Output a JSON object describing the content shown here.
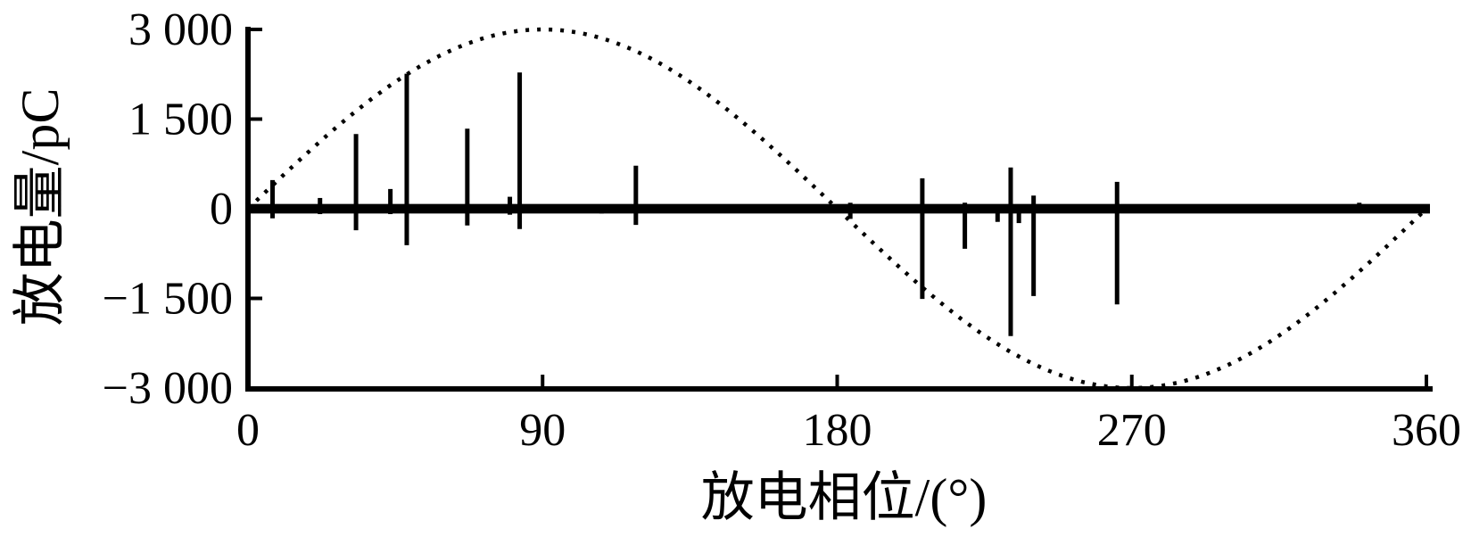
{
  "figure": {
    "background": "#ffffff",
    "ink_color": "#000000"
  },
  "chart_data": {
    "type": "scatter",
    "subtype": "prpd-stem-plot",
    "title": "",
    "xlabel": "放电相位/(°)",
    "ylabel": "放电量/pC",
    "xlim": [
      0,
      360
    ],
    "ylim": [
      -3000,
      3000
    ],
    "grid": false,
    "legend": null,
    "x_ticks": [
      0,
      90,
      180,
      270,
      360
    ],
    "x_tick_labels": [
      "0",
      "90",
      "180",
      "270",
      "360"
    ],
    "y_ticks": [
      3000,
      1500,
      0,
      -1500,
      -3000
    ],
    "y_tick_labels": [
      "3 000",
      "1 500",
      "0",
      "−1 500",
      "−3 000"
    ],
    "reference_sine": {
      "name": "applied-voltage-reference",
      "style": "dotted",
      "amplitude": 3000,
      "cycles": 1,
      "zero_crossings_deg": [
        0,
        180,
        360
      ],
      "peak_deg": 90,
      "trough_deg": 270
    },
    "zero_band": {
      "value": 0,
      "thickness_pC": 160,
      "note": "dense band of small discharges along 0 pC across full phase range"
    },
    "discharges": [
      {
        "phase_deg": 7.5,
        "pos_pC": 480,
        "neg_pC": -160
      },
      {
        "phase_deg": 22,
        "pos_pC": 180,
        "neg_pC": -90
      },
      {
        "phase_deg": 33,
        "pos_pC": 1250,
        "neg_pC": -360
      },
      {
        "phase_deg": 43.5,
        "pos_pC": 330,
        "neg_pC": -90
      },
      {
        "phase_deg": 48.5,
        "pos_pC": 2260,
        "neg_pC": -610
      },
      {
        "phase_deg": 67,
        "pos_pC": 1340,
        "neg_pC": -280
      },
      {
        "phase_deg": 80,
        "pos_pC": 200,
        "neg_pC": -100
      },
      {
        "phase_deg": 83,
        "pos_pC": 2280,
        "neg_pC": -340
      },
      {
        "phase_deg": 108,
        "pos_pC": 0,
        "neg_pC": -80
      },
      {
        "phase_deg": 118.5,
        "pos_pC": 720,
        "neg_pC": -270
      },
      {
        "phase_deg": 142,
        "pos_pC": 0,
        "neg_pC": -70
      },
      {
        "phase_deg": 158,
        "pos_pC": 0,
        "neg_pC": -70
      },
      {
        "phase_deg": 184,
        "pos_pC": 100,
        "neg_pC": -170
      },
      {
        "phase_deg": 206,
        "pos_pC": 510,
        "neg_pC": -1510
      },
      {
        "phase_deg": 219,
        "pos_pC": 100,
        "neg_pC": -670
      },
      {
        "phase_deg": 229,
        "pos_pC": 60,
        "neg_pC": -220
      },
      {
        "phase_deg": 233,
        "pos_pC": 690,
        "neg_pC": -2130
      },
      {
        "phase_deg": 235.5,
        "pos_pC": 0,
        "neg_pC": -240
      },
      {
        "phase_deg": 240,
        "pos_pC": 220,
        "neg_pC": -1460
      },
      {
        "phase_deg": 265.5,
        "pos_pC": 450,
        "neg_pC": -1600
      },
      {
        "phase_deg": 271.5,
        "pos_pC": 0,
        "neg_pC": -70
      },
      {
        "phase_deg": 276.5,
        "pos_pC": 0,
        "neg_pC": -60
      },
      {
        "phase_deg": 307.5,
        "pos_pC": 0,
        "neg_pC": -60
      },
      {
        "phase_deg": 339.5,
        "pos_pC": 100,
        "neg_pC": -60
      }
    ]
  }
}
